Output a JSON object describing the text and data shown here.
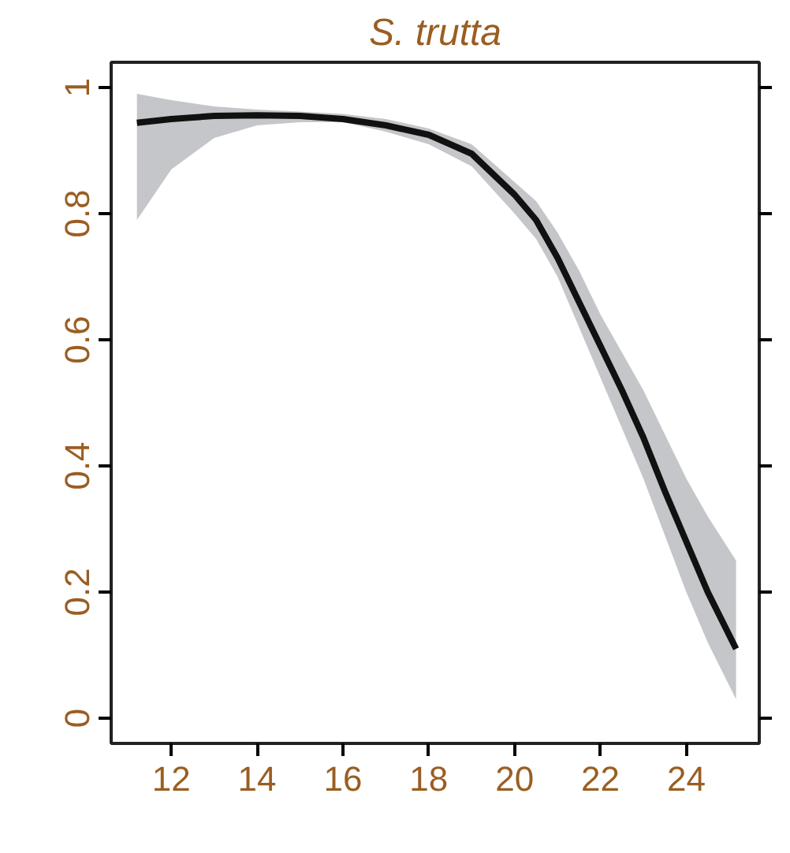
{
  "chart_data": {
    "type": "line",
    "title": "S. trutta",
    "x": [
      11.2,
      12,
      13,
      14,
      15,
      16,
      17,
      18,
      19,
      20,
      20.5,
      21,
      21.5,
      22,
      22.5,
      23,
      23.5,
      24,
      24.5,
      25.16
    ],
    "series": [
      {
        "color": "#111111",
        "values": [
          0.944,
          0.95,
          0.955,
          0.956,
          0.955,
          0.95,
          0.94,
          0.925,
          0.895,
          0.83,
          0.79,
          0.73,
          0.66,
          0.59,
          0.52,
          0.445,
          0.36,
          0.28,
          0.2,
          0.11
        ],
        "lower": [
          0.79,
          0.87,
          0.92,
          0.94,
          0.945,
          0.945,
          0.93,
          0.91,
          0.875,
          0.8,
          0.76,
          0.7,
          0.62,
          0.54,
          0.46,
          0.38,
          0.29,
          0.2,
          0.12,
          0.03
        ],
        "upper": [
          0.99,
          0.98,
          0.97,
          0.965,
          0.962,
          0.958,
          0.95,
          0.935,
          0.91,
          0.85,
          0.82,
          0.77,
          0.71,
          0.64,
          0.58,
          0.52,
          0.45,
          0.38,
          0.32,
          0.25
        ]
      }
    ],
    "xlim": [
      10.6,
      25.7
    ],
    "ylim": [
      -0.04,
      1.04
    ],
    "xticks": [
      12,
      14,
      16,
      18,
      20,
      22,
      24
    ],
    "yticks": [
      0,
      0.2,
      0.4,
      0.6,
      0.8,
      1
    ],
    "grid": false,
    "line_style": "solid"
  }
}
